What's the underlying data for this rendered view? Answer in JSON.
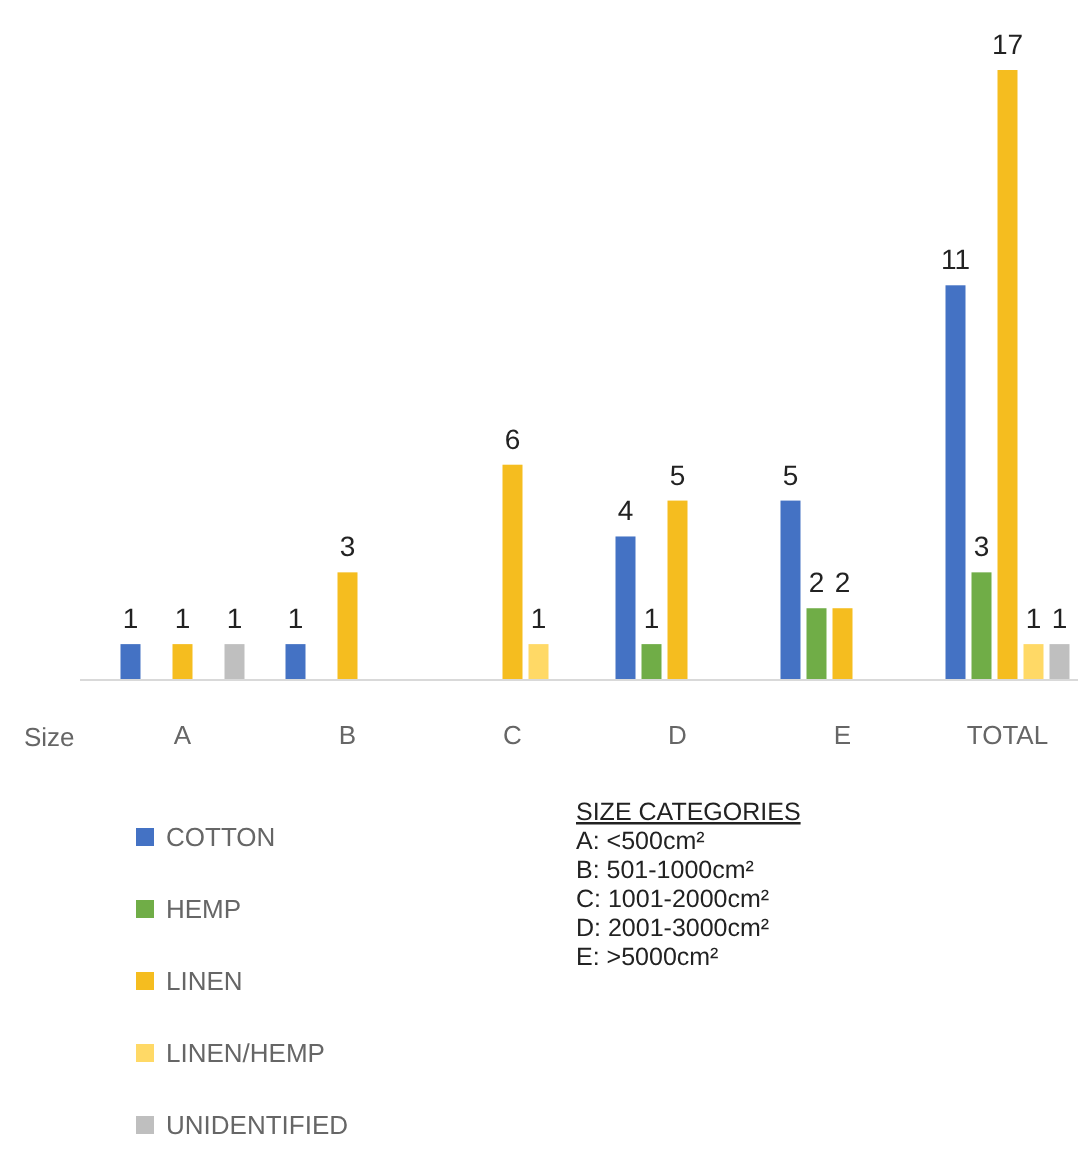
{
  "chart_data": {
    "type": "bar",
    "xlabel": "Size",
    "categories": [
      "A",
      "B",
      "C",
      "D",
      "E",
      "TOTAL"
    ],
    "series": [
      {
        "name": "COTTON",
        "color": "#4472c4",
        "values": [
          1,
          1,
          null,
          4,
          5,
          11
        ]
      },
      {
        "name": "HEMP",
        "color": "#70ad47",
        "values": [
          null,
          null,
          null,
          1,
          2,
          3
        ]
      },
      {
        "name": "LINEN",
        "color": "#f5bd1f",
        "values": [
          1,
          3,
          6,
          5,
          2,
          17
        ]
      },
      {
        "name": "LINEN/HEMP",
        "color": "#ffd966",
        "values": [
          null,
          null,
          1,
          null,
          null,
          1
        ]
      },
      {
        "name": "UNIDENTIFIED",
        "color": "#bfbfbf",
        "values": [
          1,
          null,
          null,
          null,
          null,
          1
        ]
      }
    ],
    "data_labels": true,
    "legend": "bottom left",
    "annotations": [
      "SIZE CATEGORIES",
      "A: <500cm²",
      "B: 501-1000cm²",
      "C: 1001-2000cm²",
      "D: 2001-3000cm²",
      "E: >5000cm²"
    ]
  }
}
